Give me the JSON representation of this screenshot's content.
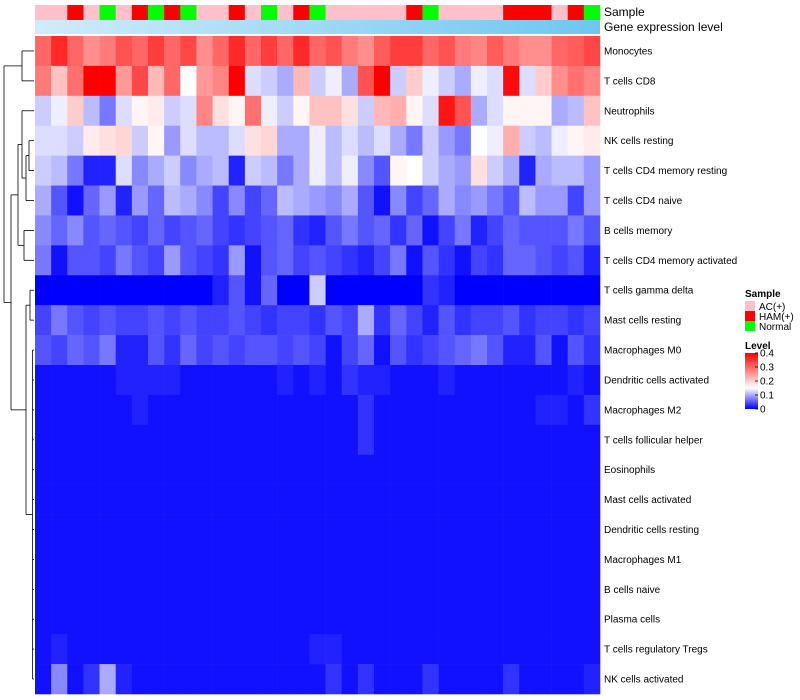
{
  "chart_data": {
    "type": "heatmap",
    "title": "",
    "annotation_labels": [
      "Sample",
      "Gene expression level"
    ],
    "rows": [
      "Monocytes",
      "T cells CD8",
      "Neutrophils",
      "NK cells resting",
      "T cells CD4 memory resting",
      "T cells CD4 naive",
      "B cells memory",
      "T cells CD4 memory activated",
      "T cells gamma delta",
      "Mast cells resting",
      "Macrophages M0",
      "Dendritic cells activated",
      "Macrophages M2",
      "T cells follicular helper",
      "Eosinophils",
      "Mast cells activated",
      "Dendritic cells resting",
      "Macrophages M1",
      "B cells naive",
      "Plasma cells",
      "T cells regulatory  Tregs",
      "NK cells activated"
    ],
    "sample_groups": [
      "AC",
      "AC",
      "HAM",
      "AC",
      "Normal",
      "AC",
      "HAM",
      "Normal",
      "HAM",
      "Normal",
      "AC",
      "AC",
      "HAM",
      "AC",
      "Normal",
      "AC",
      "HAM",
      "Normal",
      "AC",
      "AC",
      "AC",
      "AC",
      "AC",
      "HAM",
      "Normal",
      "AC",
      "AC",
      "AC",
      "AC",
      "HAM",
      "HAM",
      "HAM",
      "AC",
      "HAM",
      "Normal"
    ],
    "values": [
      [
        0.3,
        0.36,
        0.3,
        0.26,
        0.28,
        0.32,
        0.3,
        0.34,
        0.3,
        0.33,
        0.26,
        0.3,
        0.36,
        0.3,
        0.34,
        0.3,
        0.36,
        0.3,
        0.32,
        0.28,
        0.26,
        0.31,
        0.34,
        0.34,
        0.3,
        0.32,
        0.28,
        0.27,
        0.31,
        0.28,
        0.26,
        0.26,
        0.3,
        0.31,
        0.33
      ],
      [
        0.28,
        0.21,
        0.29,
        0.4,
        0.4,
        0.25,
        0.33,
        0.22,
        0.3,
        0.15,
        0.25,
        0.27,
        0.4,
        0.13,
        0.12,
        0.1,
        0.22,
        0.12,
        0.14,
        0.1,
        0.32,
        0.4,
        0.12,
        0.2,
        0.14,
        0.12,
        0.1,
        0.14,
        0.13,
        0.39,
        0.13,
        0.2,
        0.26,
        0.29,
        0.27
      ],
      [
        0.12,
        0.14,
        0.2,
        0.11,
        0.07,
        0.13,
        0.16,
        0.17,
        0.12,
        0.13,
        0.27,
        0.18,
        0.16,
        0.29,
        0.14,
        0.12,
        0.16,
        0.21,
        0.21,
        0.18,
        0.12,
        0.22,
        0.23,
        0.16,
        0.13,
        0.38,
        0.32,
        0.1,
        0.13,
        0.16,
        0.16,
        0.16,
        0.1,
        0.11,
        0.21
      ],
      [
        0.13,
        0.13,
        0.12,
        0.17,
        0.18,
        0.19,
        0.12,
        0.16,
        0.09,
        0.13,
        0.11,
        0.11,
        0.13,
        0.18,
        0.19,
        0.1,
        0.1,
        0.14,
        0.11,
        0.13,
        0.11,
        0.13,
        0.1,
        0.07,
        0.12,
        0.09,
        0.07,
        0.15,
        0.14,
        0.23,
        0.12,
        0.11,
        0.14,
        0.16,
        0.17
      ],
      [
        0.12,
        0.11,
        0.07,
        0.02,
        0.02,
        0.13,
        0.08,
        0.1,
        0.12,
        0.08,
        0.1,
        0.11,
        0.02,
        0.12,
        0.11,
        0.07,
        0.1,
        0.14,
        0.11,
        0.14,
        0.08,
        0.05,
        0.16,
        0.15,
        0.12,
        0.1,
        0.09,
        0.18,
        0.12,
        0.1,
        0.02,
        0.1,
        0.11,
        0.11,
        0.09
      ],
      [
        0.1,
        0.05,
        0.01,
        0.06,
        0.09,
        0.02,
        0.09,
        0.06,
        0.11,
        0.1,
        0.08,
        0.04,
        0.08,
        0.04,
        0.06,
        0.11,
        0.1,
        0.09,
        0.08,
        0.1,
        0.05,
        0.01,
        0.08,
        0.04,
        0.06,
        0.1,
        0.08,
        0.09,
        0.07,
        0.05,
        0.11,
        0.09,
        0.09,
        0.04,
        0.09
      ],
      [
        0.08,
        0.06,
        0.08,
        0.05,
        0.06,
        0.05,
        0.04,
        0.06,
        0.04,
        0.05,
        0.06,
        0.04,
        0.03,
        0.04,
        0.05,
        0.06,
        0.03,
        0.02,
        0.05,
        0.07,
        0.05,
        0.06,
        0.03,
        0.06,
        0.01,
        0.04,
        0.07,
        0.02,
        0.04,
        0.06,
        0.05,
        0.05,
        0.05,
        0.07,
        0.05
      ],
      [
        0.07,
        0.01,
        0.05,
        0.05,
        0.04,
        0.07,
        0.05,
        0.04,
        0.09,
        0.05,
        0.04,
        0.03,
        0.09,
        0.01,
        0.05,
        0.06,
        0.04,
        0.05,
        0.04,
        0.03,
        0.02,
        0.04,
        0.07,
        0.01,
        0.05,
        0.03,
        0.01,
        0.04,
        0.03,
        0.06,
        0.06,
        0.05,
        0.04,
        0.05,
        0.02
      ],
      [
        0.0,
        0.0,
        0.0,
        0.0,
        0.0,
        0.0,
        0.0,
        0.0,
        0.0,
        0.0,
        0.0,
        0.02,
        0.05,
        0.01,
        0.06,
        0.0,
        0.0,
        0.12,
        0.0,
        0.0,
        0.0,
        0.0,
        0.0,
        0.0,
        0.03,
        0.02,
        0.0,
        0.0,
        0.0,
        0.0,
        0.0,
        0.0,
        0.0,
        0.0,
        0.0
      ],
      [
        0.04,
        0.07,
        0.05,
        0.04,
        0.05,
        0.04,
        0.04,
        0.05,
        0.04,
        0.05,
        0.04,
        0.04,
        0.05,
        0.04,
        0.03,
        0.04,
        0.04,
        0.03,
        0.05,
        0.04,
        0.1,
        0.03,
        0.06,
        0.04,
        0.02,
        0.05,
        0.03,
        0.04,
        0.04,
        0.05,
        0.03,
        0.04,
        0.04,
        0.03,
        0.04
      ],
      [
        0.05,
        0.04,
        0.06,
        0.05,
        0.07,
        0.02,
        0.02,
        0.05,
        0.03,
        0.06,
        0.04,
        0.05,
        0.04,
        0.05,
        0.05,
        0.04,
        0.05,
        0.04,
        0.01,
        0.04,
        0.06,
        0.01,
        0.05,
        0.03,
        0.04,
        0.05,
        0.06,
        0.07,
        0.05,
        0.02,
        0.02,
        0.05,
        0.01,
        0.05,
        0.03
      ],
      [
        0.01,
        0.01,
        0.01,
        0.01,
        0.01,
        0.02,
        0.02,
        0.02,
        0.02,
        0.01,
        0.01,
        0.01,
        0.01,
        0.01,
        0.01,
        0.02,
        0.01,
        0.02,
        0.01,
        0.03,
        0.02,
        0.02,
        0.01,
        0.01,
        0.01,
        0.02,
        0.01,
        0.01,
        0.01,
        0.01,
        0.01,
        0.01,
        0.01,
        0.02,
        0.01
      ],
      [
        0.01,
        0.01,
        0.01,
        0.01,
        0.01,
        0.01,
        0.02,
        0.01,
        0.01,
        0.01,
        0.01,
        0.01,
        0.01,
        0.01,
        0.01,
        0.01,
        0.01,
        0.01,
        0.01,
        0.01,
        0.03,
        0.01,
        0.01,
        0.01,
        0.01,
        0.01,
        0.01,
        0.01,
        0.01,
        0.01,
        0.01,
        0.02,
        0.02,
        0.01,
        0.03
      ],
      [
        0.01,
        0.01,
        0.01,
        0.01,
        0.01,
        0.01,
        0.01,
        0.01,
        0.01,
        0.01,
        0.01,
        0.01,
        0.01,
        0.01,
        0.01,
        0.01,
        0.01,
        0.01,
        0.01,
        0.01,
        0.03,
        0.01,
        0.01,
        0.01,
        0.01,
        0.01,
        0.01,
        0.01,
        0.01,
        0.01,
        0.01,
        0.01,
        0.01,
        0.01,
        0.01
      ],
      [
        0.01,
        0.01,
        0.01,
        0.01,
        0.01,
        0.01,
        0.01,
        0.01,
        0.01,
        0.01,
        0.01,
        0.01,
        0.01,
        0.01,
        0.01,
        0.01,
        0.01,
        0.01,
        0.01,
        0.01,
        0.01,
        0.01,
        0.01,
        0.01,
        0.01,
        0.01,
        0.01,
        0.01,
        0.01,
        0.01,
        0.01,
        0.01,
        0.01,
        0.01,
        0.01
      ],
      [
        0.01,
        0.01,
        0.01,
        0.01,
        0.01,
        0.01,
        0.01,
        0.01,
        0.01,
        0.01,
        0.01,
        0.01,
        0.01,
        0.01,
        0.01,
        0.01,
        0.01,
        0.01,
        0.01,
        0.01,
        0.01,
        0.01,
        0.01,
        0.01,
        0.01,
        0.01,
        0.01,
        0.01,
        0.01,
        0.01,
        0.01,
        0.01,
        0.01,
        0.01,
        0.01
      ],
      [
        0.01,
        0.01,
        0.01,
        0.01,
        0.01,
        0.01,
        0.01,
        0.01,
        0.01,
        0.01,
        0.01,
        0.01,
        0.01,
        0.01,
        0.01,
        0.01,
        0.01,
        0.01,
        0.01,
        0.01,
        0.01,
        0.01,
        0.01,
        0.01,
        0.01,
        0.01,
        0.01,
        0.01,
        0.01,
        0.01,
        0.01,
        0.01,
        0.01,
        0.01,
        0.01
      ],
      [
        0.01,
        0.01,
        0.01,
        0.01,
        0.01,
        0.01,
        0.01,
        0.01,
        0.01,
        0.01,
        0.01,
        0.01,
        0.01,
        0.01,
        0.01,
        0.01,
        0.01,
        0.01,
        0.01,
        0.01,
        0.01,
        0.01,
        0.01,
        0.01,
        0.01,
        0.01,
        0.01,
        0.01,
        0.01,
        0.01,
        0.01,
        0.01,
        0.01,
        0.01,
        0.01
      ],
      [
        0.01,
        0.01,
        0.01,
        0.01,
        0.01,
        0.01,
        0.01,
        0.01,
        0.01,
        0.01,
        0.01,
        0.01,
        0.01,
        0.01,
        0.01,
        0.01,
        0.01,
        0.01,
        0.01,
        0.01,
        0.01,
        0.01,
        0.01,
        0.01,
        0.01,
        0.01,
        0.01,
        0.01,
        0.01,
        0.01,
        0.01,
        0.01,
        0.01,
        0.01,
        0.01
      ],
      [
        0.01,
        0.01,
        0.01,
        0.01,
        0.01,
        0.01,
        0.01,
        0.01,
        0.01,
        0.01,
        0.01,
        0.01,
        0.01,
        0.01,
        0.01,
        0.01,
        0.01,
        0.01,
        0.01,
        0.01,
        0.01,
        0.01,
        0.01,
        0.01,
        0.01,
        0.01,
        0.01,
        0.01,
        0.01,
        0.01,
        0.01,
        0.01,
        0.01,
        0.01,
        0.01
      ],
      [
        0.01,
        0.02,
        0.01,
        0.01,
        0.01,
        0.01,
        0.01,
        0.01,
        0.01,
        0.01,
        0.01,
        0.01,
        0.01,
        0.01,
        0.01,
        0.01,
        0.01,
        0.02,
        0.02,
        0.01,
        0.01,
        0.01,
        0.01,
        0.01,
        0.01,
        0.01,
        0.01,
        0.01,
        0.01,
        0.01,
        0.01,
        0.01,
        0.01,
        0.01,
        0.01
      ],
      [
        0.01,
        0.08,
        0.01,
        0.03,
        0.1,
        0.02,
        0.01,
        0.01,
        0.01,
        0.01,
        0.01,
        0.01,
        0.01,
        0.01,
        0.01,
        0.01,
        0.01,
        0.01,
        0.03,
        0.01,
        0.03,
        0.01,
        0.01,
        0.01,
        0.03,
        0.01,
        0.01,
        0.01,
        0.01,
        0.03,
        0.01,
        0.01,
        0.01,
        0.01,
        0.02
      ]
    ],
    "color_scale": {
      "min": 0,
      "max": 0.4,
      "stops": [
        {
          "value": 0,
          "color": "#0000ff"
        },
        {
          "value": 0.15,
          "color": "#ffffff"
        },
        {
          "value": 0.4,
          "color": "#ff0000"
        }
      ]
    },
    "annotation_row_color": "#6ec6f0",
    "sample_legend": {
      "title": "Sample",
      "entries": [
        {
          "key": "AC",
          "label": "AC(+)",
          "color": "#ffc0cb"
        },
        {
          "key": "HAM",
          "label": "HAM(+)",
          "color": "#ff0000"
        },
        {
          "key": "Normal",
          "label": "Normal",
          "color": "#00ff00"
        }
      ]
    },
    "level_legend": {
      "title": "Level",
      "ticks": [
        0.4,
        0.3,
        0.2,
        0.1,
        0
      ],
      "tick_labels": [
        "0.4",
        "0.3",
        "0.2",
        "0.1",
        "0"
      ]
    },
    "row_dendrogram": true,
    "legend_position": "right"
  }
}
